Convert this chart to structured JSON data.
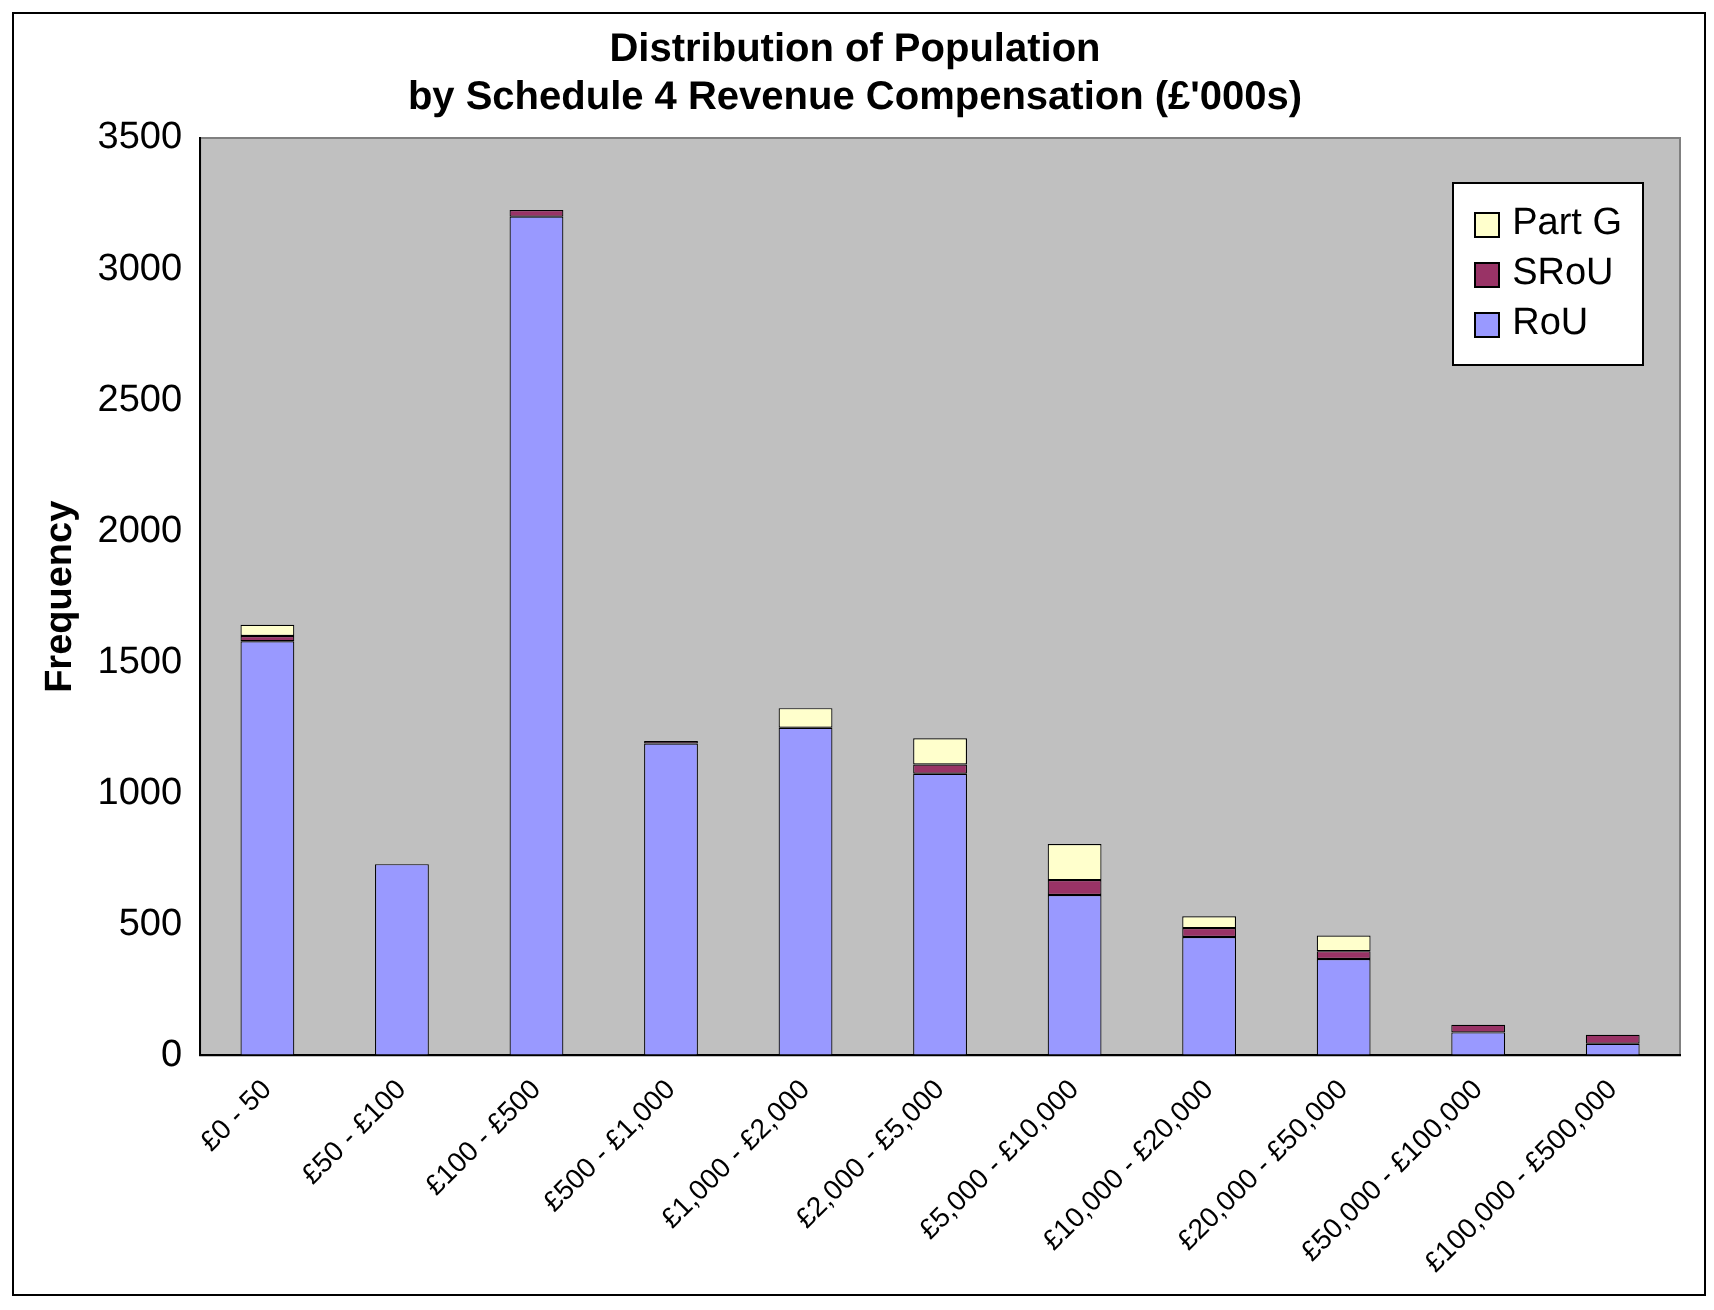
{
  "chart_data": {
    "type": "bar",
    "title": "Distribution of Population\nby Schedule 4 Revenue Compensation (£'000s)",
    "ylabel": "Frequency",
    "categories": [
      "£0 - 50",
      "£50 - £100",
      "£100 - £500",
      "£500 - £1,000",
      "£1,000 - £2,000",
      "£2,000 - £5,000",
      "£5,000 - £10,000",
      "£10,000 - £20,000",
      "£20,000 - £50,000",
      "£50,000 - £100,000",
      "£100,000 - £500,000"
    ],
    "stacked": true,
    "series": [
      {
        "name": "RoU",
        "color": "#9999ff",
        "values": [
          1580,
          730,
          3200,
          1190,
          1250,
          1075,
          612,
          452,
          368,
          88,
          45
        ]
      },
      {
        "name": "SRoU",
        "color": "#993366",
        "values": [
          20,
          0,
          25,
          10,
          0,
          35,
          57,
          34,
          30,
          29,
          34
        ]
      },
      {
        "name": "Part G",
        "color": "#ffffcc",
        "values": [
          43,
          0,
          null,
          null,
          75,
          100,
          138,
          45,
          60,
          null,
          0
        ]
      }
    ],
    "ylim": [
      0,
      3500
    ],
    "yticks": [
      0,
      500,
      1000,
      1500,
      2000,
      2500,
      3000,
      3500
    ],
    "grid": false,
    "legend": "top right"
  }
}
